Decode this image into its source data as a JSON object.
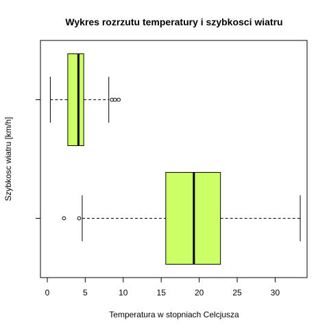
{
  "chart_data": {
    "type": "boxplot",
    "orientation": "horizontal",
    "title": "Wykres rozrzutu temperatury i szybkosci wiatru",
    "xlabel": "Temperatura w stopniach Celcjusza",
    "ylabel": "Szybkosc wiatru [km/h]",
    "xlim": [
      -0.9,
      34.2
    ],
    "x_ticks": [
      0,
      5,
      10,
      15,
      20,
      25,
      30
    ],
    "box_color": "#ccff66",
    "grid": false,
    "legend": "none",
    "series": [
      {
        "min": 4.6,
        "q1": 15.6,
        "median": 19.3,
        "q3": 22.8,
        "max": 33.3,
        "outliers": [
          2.2,
          4.2
        ]
      },
      {
        "min": 0.4,
        "q1": 2.7,
        "median": 4.1,
        "q3": 4.8,
        "max": 8.1,
        "outliers": [
          8.5,
          8.9,
          9.4
        ]
      }
    ]
  }
}
